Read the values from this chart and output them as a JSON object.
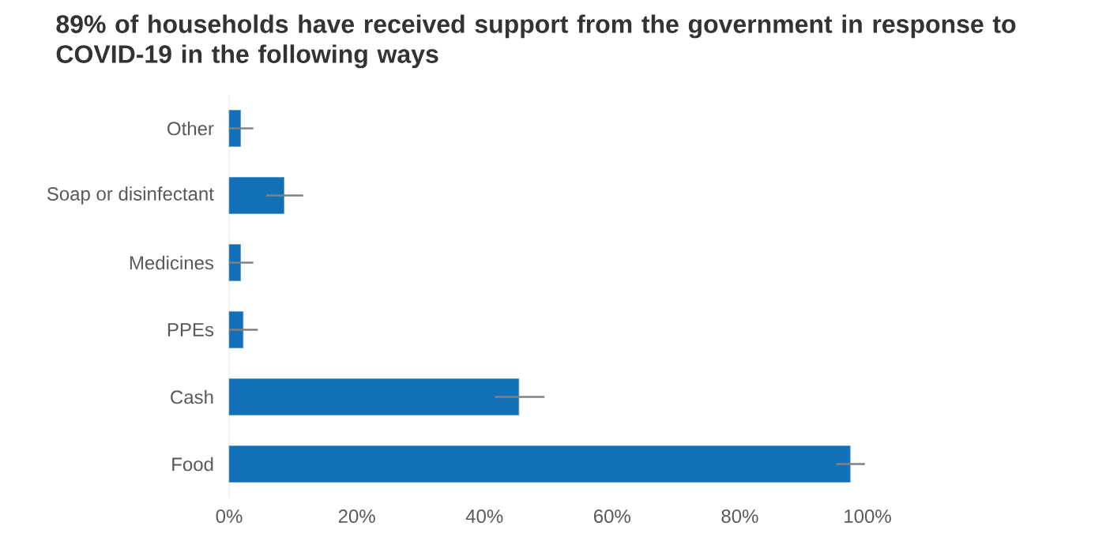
{
  "chart_data": {
    "type": "bar",
    "orientation": "horizontal",
    "title": "89% of households have received support from the government in response to COVID-19 in the following ways",
    "categories": [
      "Other",
      "Soap or disinfectant",
      "Medicines",
      "PPEs",
      "Cash",
      "Food"
    ],
    "values": [
      1.8,
      8.6,
      1.8,
      2.2,
      45.4,
      97.3
    ],
    "errors": [
      [
        0,
        3.8
      ],
      [
        5.8,
        11.6
      ],
      [
        0,
        3.8
      ],
      [
        0,
        4.5
      ],
      [
        41.6,
        49.4
      ],
      [
        95.1,
        99.6
      ]
    ],
    "color": "#1170b8",
    "xlim": [
      0,
      100
    ],
    "xticks": [
      {
        "value": 0,
        "label": "0%"
      },
      {
        "value": 20,
        "label": "20%"
      },
      {
        "value": 40,
        "label": "40%"
      },
      {
        "value": 60,
        "label": "60%"
      },
      {
        "value": 80,
        "label": "80%"
      },
      {
        "value": 100,
        "label": "100%"
      }
    ]
  }
}
